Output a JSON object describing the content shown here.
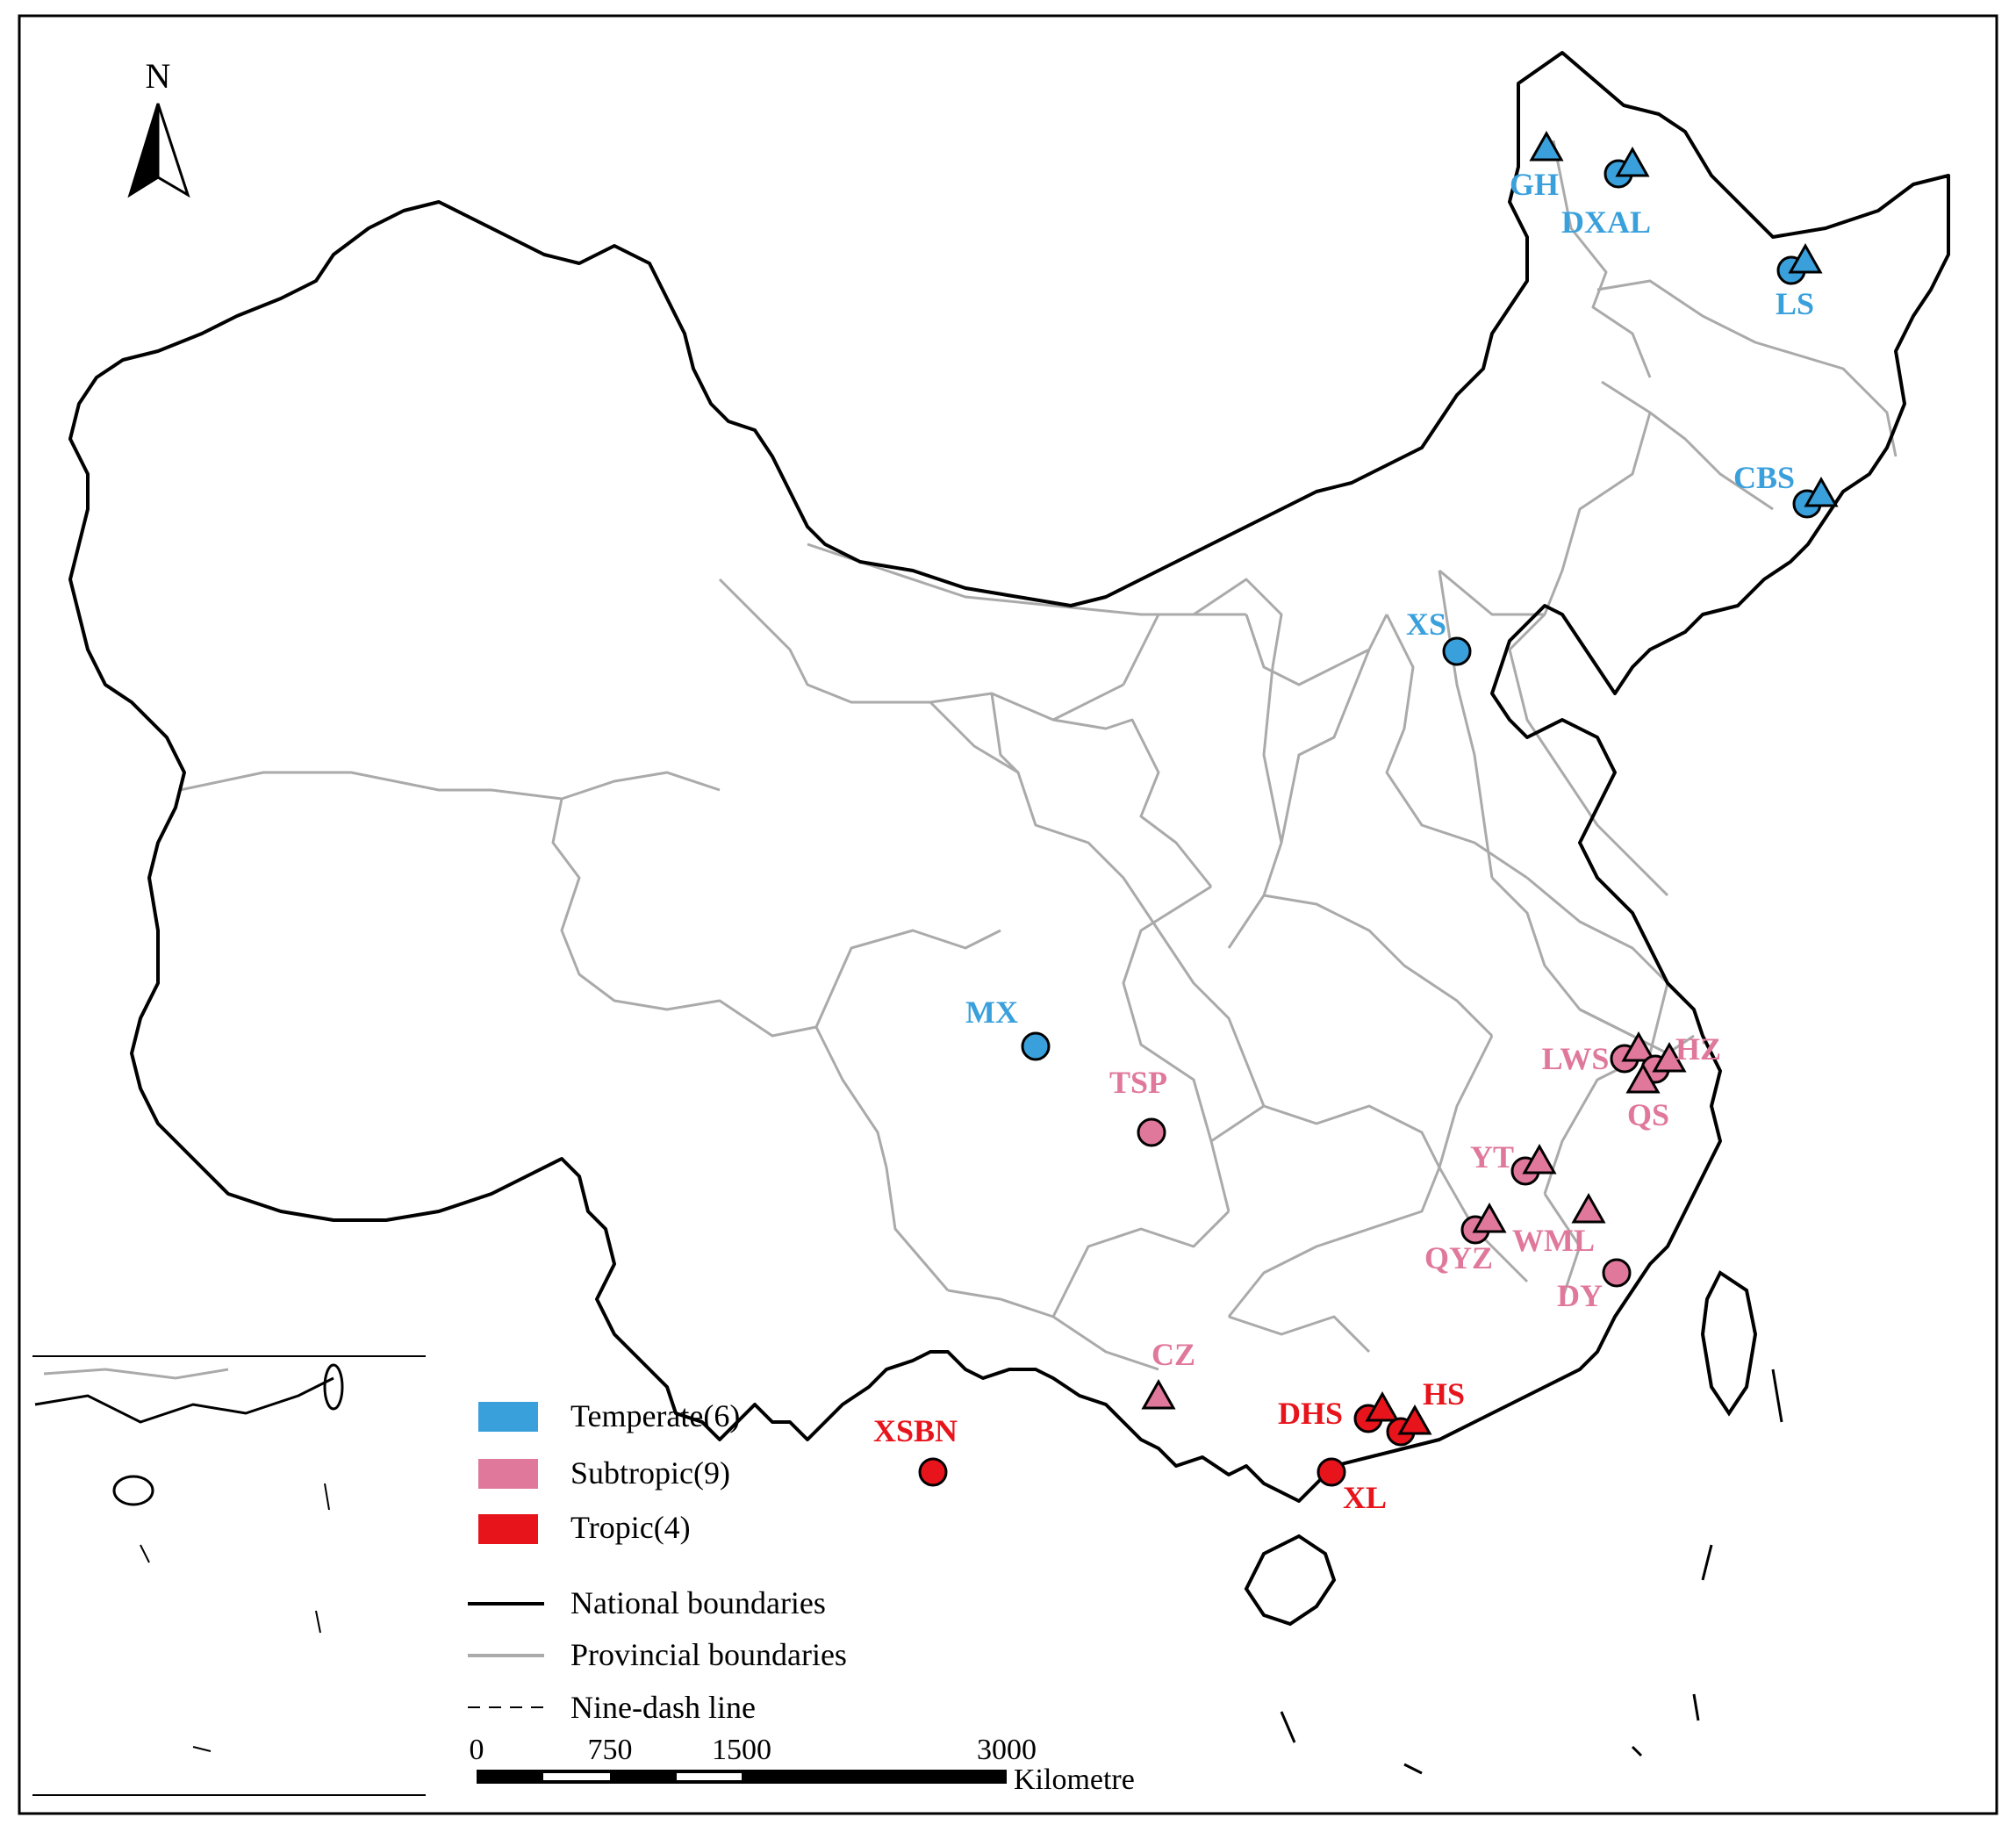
{
  "north_arrow": {
    "label": "N"
  },
  "climate_zones": [
    {
      "key": "temperate",
      "label": "Temperate(6)",
      "color": "#3aa0dc"
    },
    {
      "key": "subtropic",
      "label": "Subtropic(9)",
      "color": "#e0789c"
    },
    {
      "key": "tropic",
      "label": "Tropic(4)",
      "color": "#e8141c"
    }
  ],
  "line_legend": [
    {
      "key": "national",
      "label": "National boundaries",
      "style": "solid-black"
    },
    {
      "key": "provincial",
      "label": "Provincial boundaries",
      "style": "solid-gray"
    },
    {
      "key": "nine_dash",
      "label": "Nine-dash line",
      "style": "dashed"
    }
  ],
  "scale_bar": {
    "ticks": [
      "0",
      "750",
      "1500",
      "3000"
    ],
    "unit": "Kilometre"
  },
  "sites": [
    {
      "label": "GH",
      "zone": "temperate",
      "markers": [
        "triangle"
      ]
    },
    {
      "label": "DXAL",
      "zone": "temperate",
      "markers": [
        "circle",
        "triangle"
      ]
    },
    {
      "label": "LS",
      "zone": "temperate",
      "markers": [
        "circle",
        "triangle"
      ]
    },
    {
      "label": "CBS",
      "zone": "temperate",
      "markers": [
        "circle",
        "triangle"
      ]
    },
    {
      "label": "XS",
      "zone": "temperate",
      "markers": [
        "circle"
      ]
    },
    {
      "label": "MX",
      "zone": "temperate",
      "markers": [
        "circle"
      ]
    },
    {
      "label": "TSP",
      "zone": "subtropic",
      "markers": [
        "circle"
      ]
    },
    {
      "label": "LWS",
      "zone": "subtropic",
      "markers": [
        "circle",
        "triangle"
      ]
    },
    {
      "label": "HZ",
      "zone": "subtropic",
      "markers": [
        "circle",
        "triangle"
      ]
    },
    {
      "label": "QS",
      "zone": "subtropic",
      "markers": [
        "triangle"
      ]
    },
    {
      "label": "YT",
      "zone": "subtropic",
      "markers": [
        "circle",
        "triangle"
      ]
    },
    {
      "label": "QYZ",
      "zone": "subtropic",
      "markers": [
        "circle",
        "triangle"
      ]
    },
    {
      "label": "WML",
      "zone": "subtropic",
      "markers": [
        "triangle"
      ]
    },
    {
      "label": "DY",
      "zone": "subtropic",
      "markers": [
        "circle"
      ]
    },
    {
      "label": "CZ",
      "zone": "subtropic",
      "markers": [
        "triangle"
      ]
    },
    {
      "label": "XSBN",
      "zone": "tropic",
      "markers": [
        "circle"
      ]
    },
    {
      "label": "DHS",
      "zone": "tropic",
      "markers": [
        "circle",
        "triangle"
      ]
    },
    {
      "label": "HS",
      "zone": "tropic",
      "markers": [
        "circle",
        "triangle"
      ]
    },
    {
      "label": "XL",
      "zone": "tropic",
      "markers": [
        "circle"
      ]
    }
  ]
}
